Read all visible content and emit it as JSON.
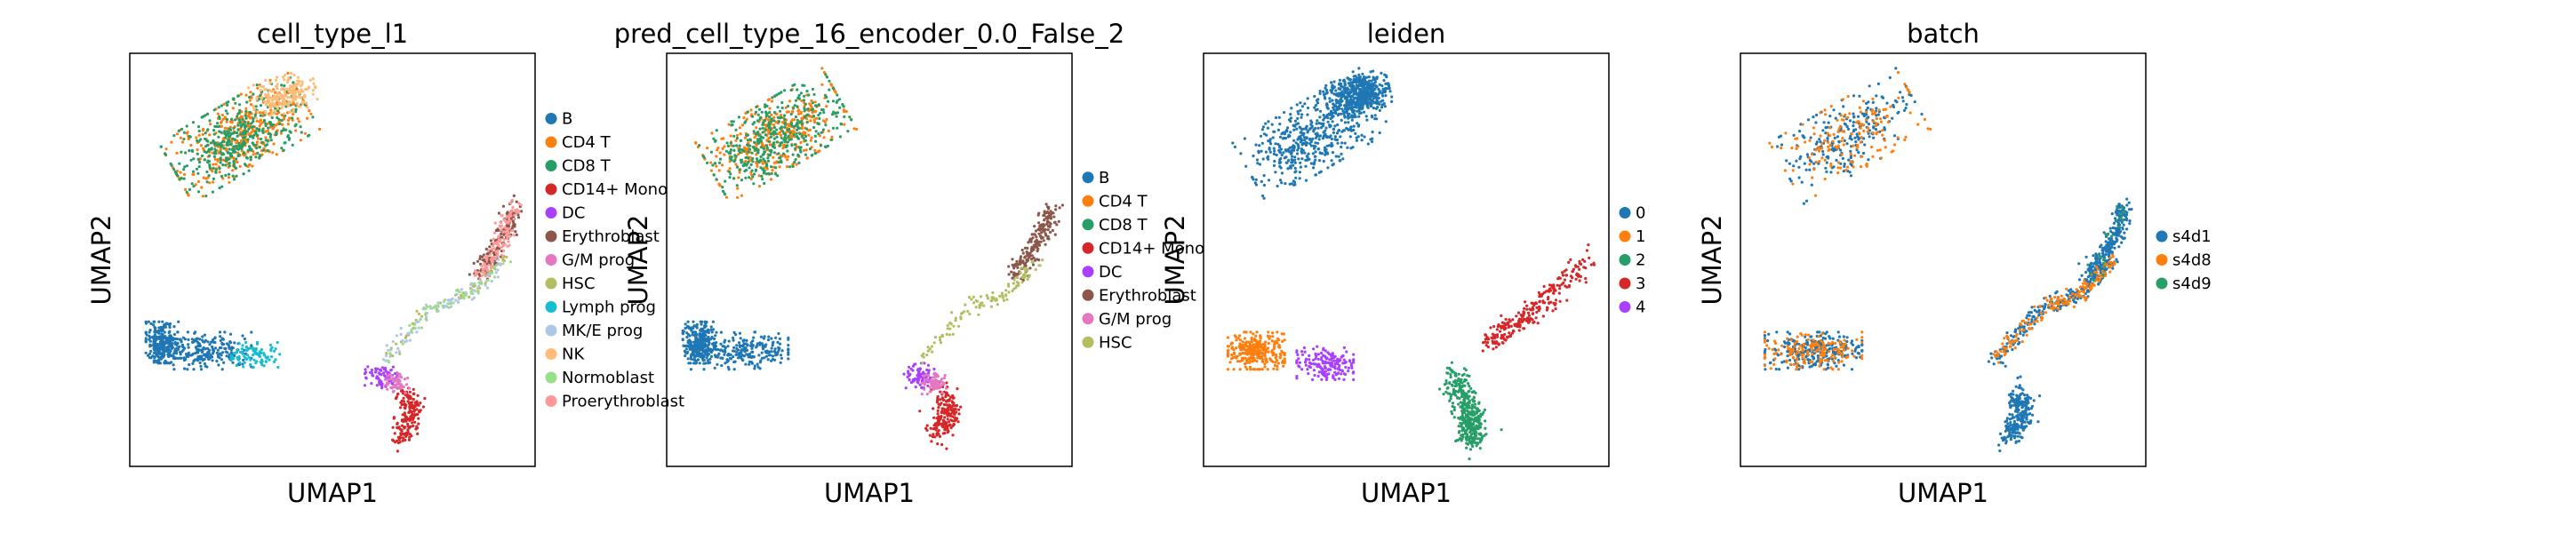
{
  "chart_data": [
    {
      "type": "scatter",
      "title": "cell_type_l1",
      "xlabel": "UMAP1",
      "ylabel": "UMAP2",
      "grid": false,
      "legend": "right",
      "series": [
        {
          "name": "B",
          "color": "#1f77b4"
        },
        {
          "name": "CD4 T",
          "color": "#ff7f0e"
        },
        {
          "name": "CD8 T",
          "color": "#279e68"
        },
        {
          "name": "CD14+ Mono",
          "color": "#d62728"
        },
        {
          "name": "DC",
          "color": "#aa40fc"
        },
        {
          "name": "Erythroblast",
          "color": "#8c564b"
        },
        {
          "name": "G/M prog",
          "color": "#e377c2"
        },
        {
          "name": "HSC",
          "color": "#b5bd61"
        },
        {
          "name": "Lymph prog",
          "color": "#17becf"
        },
        {
          "name": "MK/E prog",
          "color": "#aec7e8"
        },
        {
          "name": "NK",
          "color": "#ffbb78"
        },
        {
          "name": "Normoblast",
          "color": "#98df8a"
        },
        {
          "name": "Proerythroblast",
          "color": "#ff9896"
        }
      ]
    },
    {
      "type": "scatter",
      "title": "pred_cell_type_16_encoder_0.0_False_2",
      "xlabel": "UMAP1",
      "ylabel": "UMAP2",
      "grid": false,
      "legend": "right",
      "series": [
        {
          "name": "B",
          "color": "#1f77b4"
        },
        {
          "name": "CD4 T",
          "color": "#ff7f0e"
        },
        {
          "name": "CD8 T",
          "color": "#279e68"
        },
        {
          "name": "CD14+ Mono",
          "color": "#d62728"
        },
        {
          "name": "DC",
          "color": "#aa40fc"
        },
        {
          "name": "Erythroblast",
          "color": "#8c564b"
        },
        {
          "name": "G/M prog",
          "color": "#e377c2"
        },
        {
          "name": "HSC",
          "color": "#b5bd61"
        }
      ]
    },
    {
      "type": "scatter",
      "title": "leiden",
      "xlabel": "UMAP1",
      "ylabel": "UMAP2",
      "grid": false,
      "legend": "right",
      "series": [
        {
          "name": "0",
          "color": "#1f77b4"
        },
        {
          "name": "1",
          "color": "#ff7f0e"
        },
        {
          "name": "2",
          "color": "#279e68"
        },
        {
          "name": "3",
          "color": "#d62728"
        },
        {
          "name": "4",
          "color": "#aa40fc"
        }
      ]
    },
    {
      "type": "scatter",
      "title": "batch",
      "xlabel": "UMAP1",
      "ylabel": "UMAP2",
      "grid": false,
      "legend": "right",
      "series": [
        {
          "name": "s4d1",
          "color": "#1f77b4"
        },
        {
          "name": "s4d8",
          "color": "#ff7f0e"
        },
        {
          "name": "s4d9",
          "color": "#279e68"
        }
      ]
    }
  ]
}
